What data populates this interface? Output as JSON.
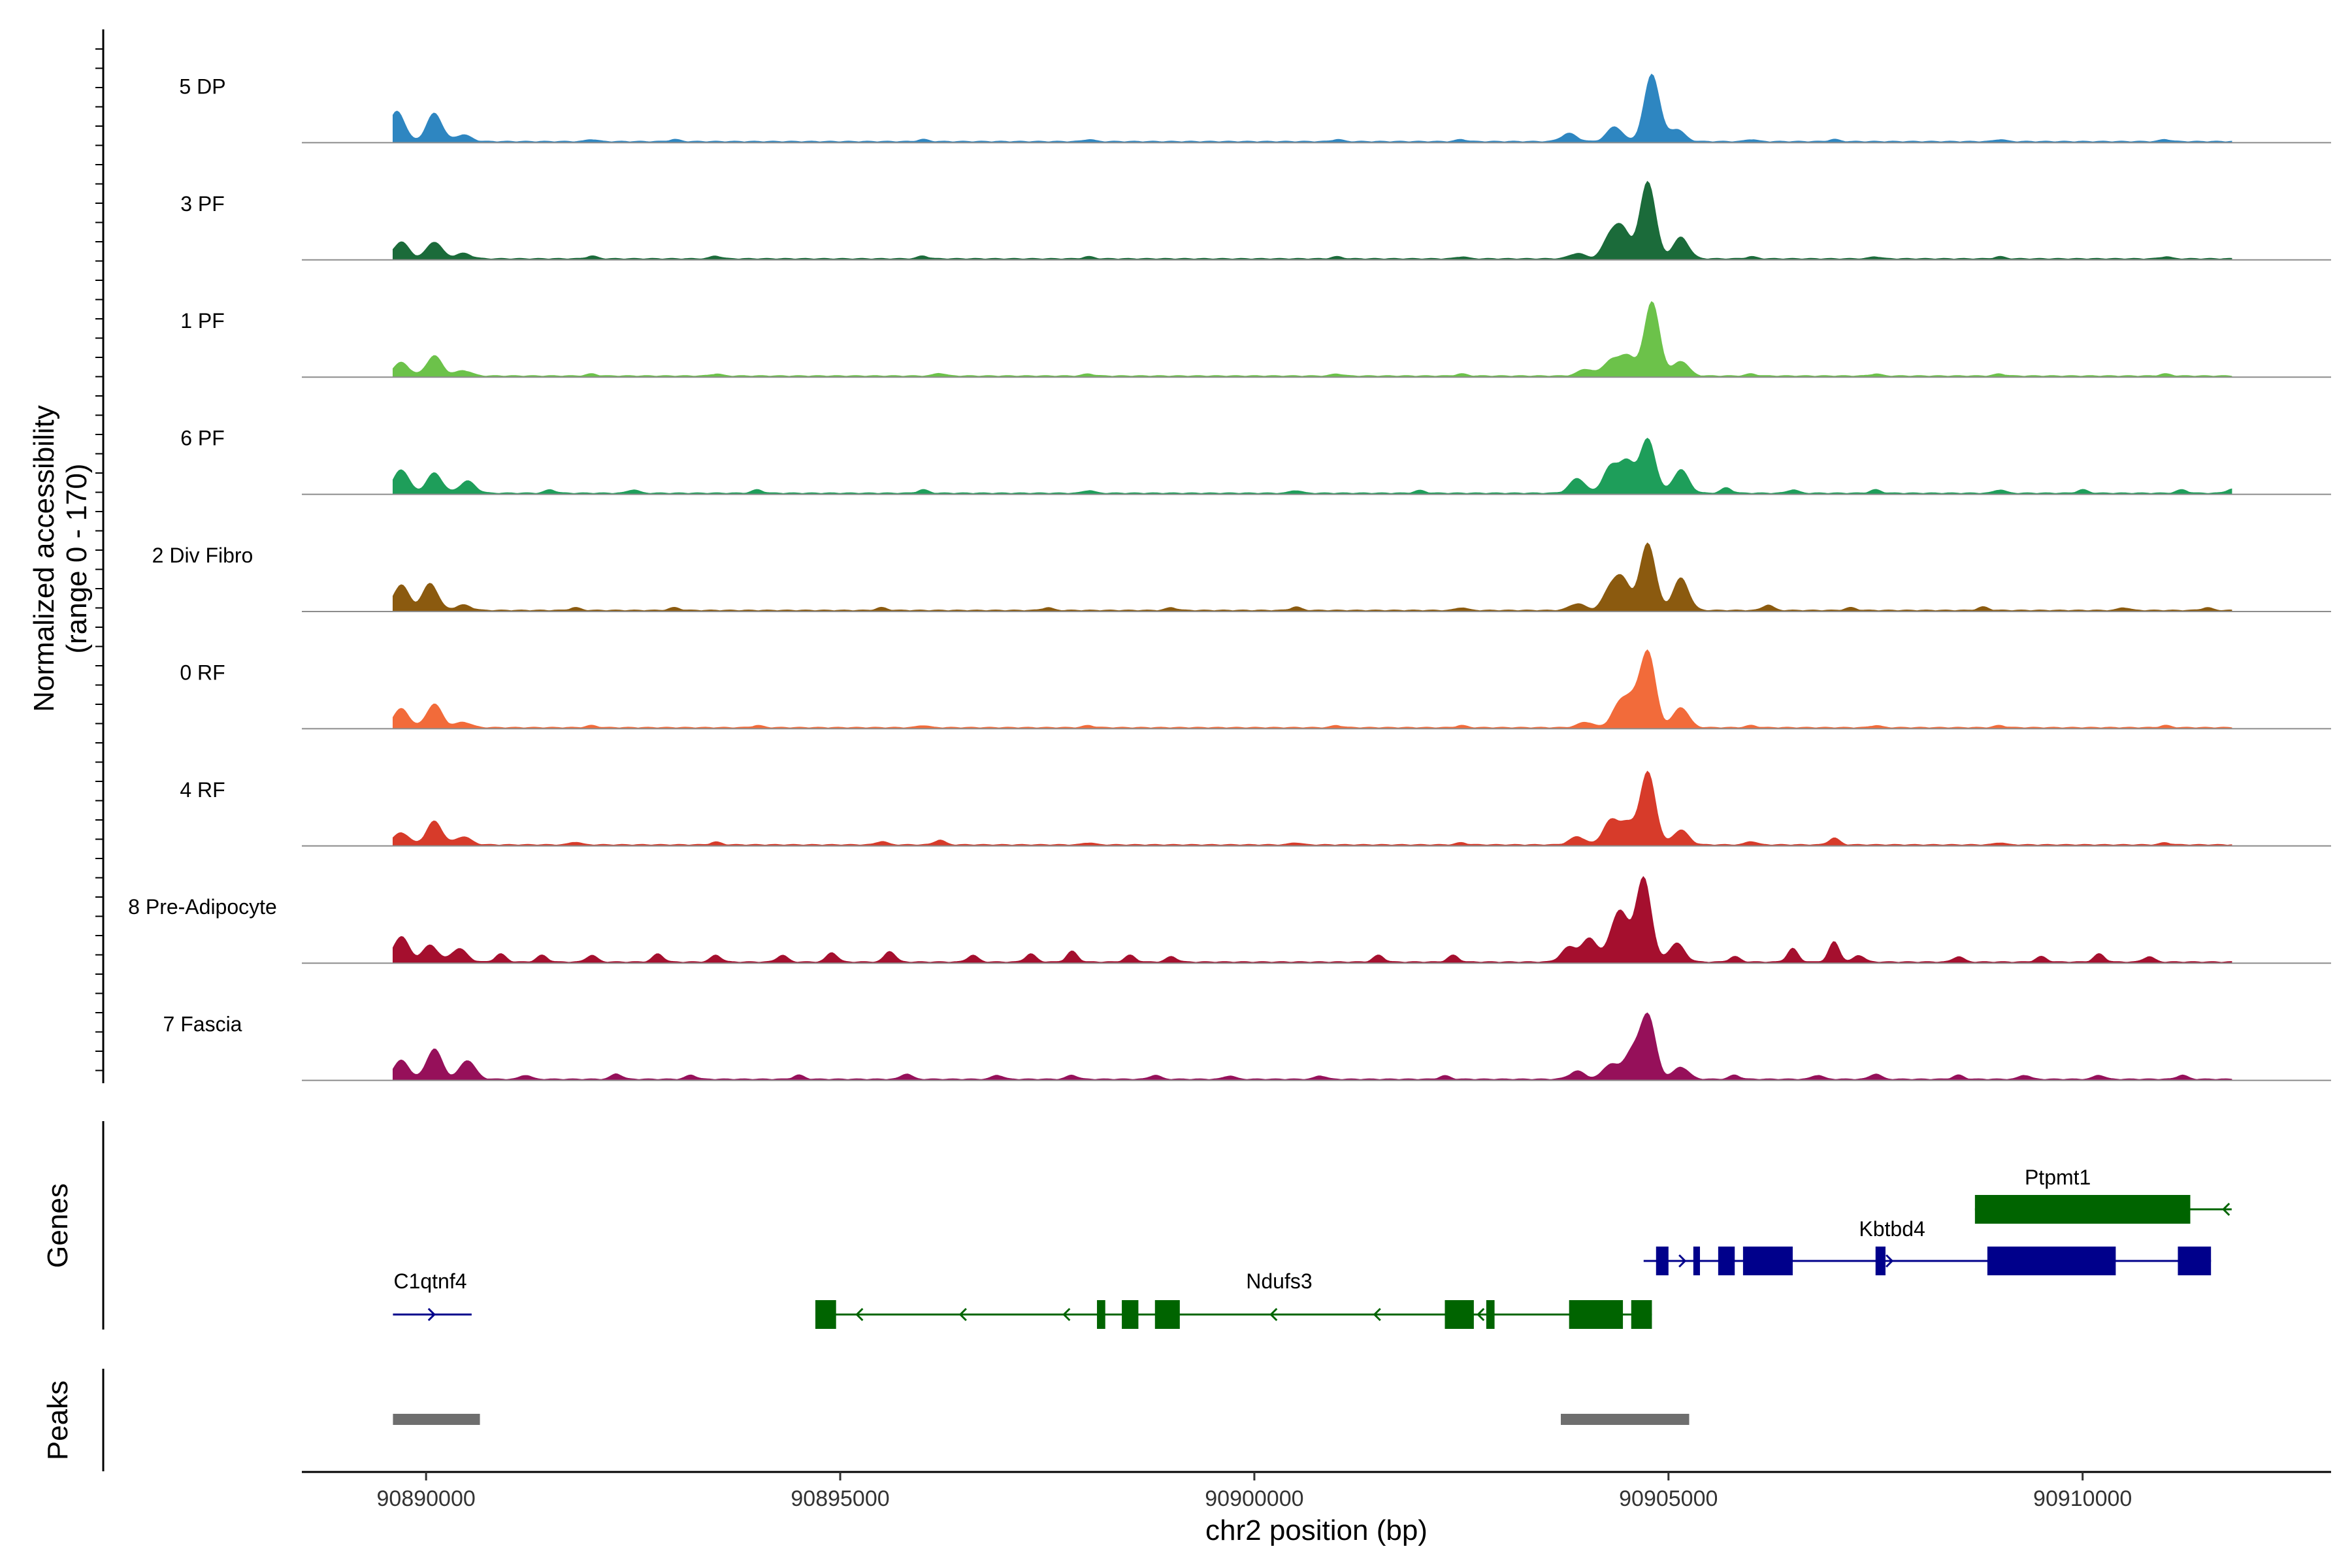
{
  "chart_data": {
    "type": "area",
    "title": "",
    "xlabel": "chr2 position (bp)",
    "ylabel": "Normalized accessibility",
    "ylabel_range": "(range 0 - 170)",
    "xlim": [
      90888500,
      90913000
    ],
    "ylim": [
      0,
      170
    ],
    "x_ticks": [
      90890000,
      90895000,
      90900000,
      90905000,
      90910000
    ],
    "x_tick_labels": [
      "90890000",
      "90895000",
      "90900000",
      "90905000",
      "90910000"
    ],
    "series": [
      {
        "name": "5 DP",
        "color": "#2E86C1",
        "peaks": [
          [
            90889650,
            45
          ],
          [
            90890100,
            42
          ],
          [
            90890450,
            10
          ],
          [
            90903800,
            12
          ],
          [
            90904350,
            22
          ],
          [
            90904800,
            100
          ],
          [
            90905100,
            18
          ]
        ],
        "small_peaks": [
          [
            90892000,
            3
          ],
          [
            90893000,
            3
          ],
          [
            90896000,
            3
          ],
          [
            90898000,
            3
          ],
          [
            90901000,
            3
          ],
          [
            90902500,
            3
          ],
          [
            90906000,
            3
          ],
          [
            90907000,
            3
          ],
          [
            90909000,
            3
          ],
          [
            90911000,
            3
          ]
        ]
      },
      {
        "name": "3 PF",
        "color": "#1B6B3A",
        "peaks": [
          [
            90889700,
            25
          ],
          [
            90890100,
            25
          ],
          [
            90890450,
            8
          ],
          [
            90903900,
            8
          ],
          [
            90904300,
            32
          ],
          [
            90904450,
            40
          ],
          [
            90904750,
            115
          ],
          [
            90905150,
            32
          ]
        ],
        "small_peaks": [
          [
            90892000,
            4
          ],
          [
            90893500,
            4
          ],
          [
            90896000,
            4
          ],
          [
            90898000,
            3
          ],
          [
            90901000,
            3
          ],
          [
            90902500,
            3
          ],
          [
            90906000,
            3
          ],
          [
            90907500,
            3
          ],
          [
            90909000,
            3
          ],
          [
            90911000,
            3
          ]
        ]
      },
      {
        "name": "1 PF",
        "color": "#6CC24A",
        "peaks": [
          [
            90889700,
            20
          ],
          [
            90890100,
            30
          ],
          [
            90890450,
            8
          ],
          [
            90904000,
            10
          ],
          [
            90904300,
            22
          ],
          [
            90904500,
            30
          ],
          [
            90904800,
            110
          ],
          [
            90905150,
            22
          ]
        ],
        "small_peaks": [
          [
            90892000,
            3
          ],
          [
            90893500,
            3
          ],
          [
            90896200,
            4
          ],
          [
            90898000,
            3
          ],
          [
            90901000,
            3
          ],
          [
            90902500,
            3
          ],
          [
            90906000,
            3
          ],
          [
            90907500,
            3
          ],
          [
            90909000,
            3
          ],
          [
            90911000,
            3
          ]
        ]
      },
      {
        "name": "6 PF",
        "color": "#1E9E5A",
        "peaks": [
          [
            90889700,
            35
          ],
          [
            90890100,
            30
          ],
          [
            90890500,
            18
          ],
          [
            90903900,
            22
          ],
          [
            90904300,
            38
          ],
          [
            90904500,
            45
          ],
          [
            90904750,
            80
          ],
          [
            90905150,
            35
          ]
        ],
        "small_peaks": [
          [
            90891500,
            5
          ],
          [
            90892500,
            5
          ],
          [
            90894000,
            5
          ],
          [
            90896000,
            5
          ],
          [
            90898000,
            4
          ],
          [
            90900500,
            4
          ],
          [
            90902000,
            4
          ],
          [
            90905700,
            8
          ],
          [
            90906500,
            5
          ],
          [
            90907500,
            5
          ],
          [
            90909000,
            5
          ],
          [
            90910000,
            5
          ],
          [
            90911200,
            5
          ],
          [
            90911800,
            6
          ]
        ]
      },
      {
        "name": "2 Div Fibro",
        "color": "#8B5A0F",
        "peaks": [
          [
            90889700,
            38
          ],
          [
            90890050,
            40
          ],
          [
            90890450,
            8
          ],
          [
            90903900,
            10
          ],
          [
            90904300,
            30
          ],
          [
            90904450,
            42
          ],
          [
            90904750,
            100
          ],
          [
            90905150,
            48
          ]
        ],
        "small_peaks": [
          [
            90891800,
            4
          ],
          [
            90893000,
            4
          ],
          [
            90895500,
            4
          ],
          [
            90897500,
            4
          ],
          [
            90899000,
            4
          ],
          [
            90900500,
            5
          ],
          [
            90902500,
            4
          ],
          [
            90906200,
            8
          ],
          [
            90907200,
            4
          ],
          [
            90908800,
            5
          ],
          [
            90910500,
            4
          ],
          [
            90911500,
            4
          ]
        ]
      },
      {
        "name": "0 RF",
        "color": "#F26B3A",
        "peaks": [
          [
            90889700,
            28
          ],
          [
            90890100,
            35
          ],
          [
            90890450,
            8
          ],
          [
            90904000,
            8
          ],
          [
            90904400,
            30
          ],
          [
            90904550,
            35
          ],
          [
            90904750,
            112
          ],
          [
            90905150,
            30
          ]
        ],
        "small_peaks": [
          [
            90892000,
            3
          ],
          [
            90894000,
            3
          ],
          [
            90896000,
            3
          ],
          [
            90898000,
            3
          ],
          [
            90901000,
            3
          ],
          [
            90902500,
            3
          ],
          [
            90906000,
            3
          ],
          [
            90907500,
            3
          ],
          [
            90909000,
            3
          ],
          [
            90911000,
            3
          ]
        ]
      },
      {
        "name": "4 RF",
        "color": "#D73B2A",
        "peaks": [
          [
            90889700,
            18
          ],
          [
            90890100,
            35
          ],
          [
            90890450,
            12
          ],
          [
            90903900,
            12
          ],
          [
            90904300,
            35
          ],
          [
            90904500,
            30
          ],
          [
            90904750,
            108
          ],
          [
            90905150,
            22
          ]
        ],
        "small_peaks": [
          [
            90891800,
            4
          ],
          [
            90893500,
            4
          ],
          [
            90895500,
            5
          ],
          [
            90896200,
            7
          ],
          [
            90898000,
            3
          ],
          [
            90900500,
            3
          ],
          [
            90902500,
            3
          ],
          [
            90906000,
            5
          ],
          [
            90907000,
            10
          ],
          [
            90909000,
            3
          ],
          [
            90911000,
            3
          ]
        ]
      },
      {
        "name": "8 Pre-Adipocyte",
        "color": "#A50F2E",
        "peaks": [
          [
            90889700,
            38
          ],
          [
            90890050,
            25
          ],
          [
            90890400,
            20
          ],
          [
            90903800,
            22
          ],
          [
            90904050,
            35
          ],
          [
            90904350,
            38
          ],
          [
            90904450,
            50
          ],
          [
            90904700,
            125
          ],
          [
            90905100,
            28
          ]
        ],
        "small_peaks": [
          [
            90890900,
            12
          ],
          [
            90891400,
            10
          ],
          [
            90892000,
            10
          ],
          [
            90892800,
            12
          ],
          [
            90893500,
            10
          ],
          [
            90894300,
            10
          ],
          [
            90894900,
            14
          ],
          [
            90895600,
            16
          ],
          [
            90896600,
            10
          ],
          [
            90897300,
            12
          ],
          [
            90897800,
            16
          ],
          [
            90898500,
            10
          ],
          [
            90899000,
            8
          ],
          [
            90901500,
            10
          ],
          [
            90902400,
            10
          ],
          [
            90905800,
            8
          ],
          [
            90906500,
            20
          ],
          [
            90907000,
            30
          ],
          [
            90907300,
            10
          ],
          [
            90908500,
            8
          ],
          [
            90909500,
            8
          ],
          [
            90910200,
            12
          ],
          [
            90910800,
            8
          ]
        ]
      },
      {
        "name": "7 Fascia",
        "color": "#96105A",
        "peaks": [
          [
            90889700,
            28
          ],
          [
            90890100,
            45
          ],
          [
            90890500,
            28
          ],
          [
            90903900,
            12
          ],
          [
            90904300,
            22
          ],
          [
            90904550,
            38
          ],
          [
            90904750,
            95
          ],
          [
            90905150,
            18
          ]
        ],
        "small_peaks": [
          [
            90891200,
            6
          ],
          [
            90892300,
            8
          ],
          [
            90893200,
            6
          ],
          [
            90894500,
            6
          ],
          [
            90895800,
            8
          ],
          [
            90896900,
            6
          ],
          [
            90897800,
            6
          ],
          [
            90898800,
            6
          ],
          [
            90899700,
            5
          ],
          [
            90900800,
            5
          ],
          [
            90902300,
            5
          ],
          [
            90905800,
            6
          ],
          [
            90906800,
            6
          ],
          [
            90907500,
            8
          ],
          [
            90908500,
            6
          ],
          [
            90909300,
            6
          ],
          [
            90910200,
            6
          ],
          [
            90911200,
            6
          ]
        ]
      }
    ],
    "gene_track_label": "Genes",
    "genes": [
      {
        "name": "C1qtnf4",
        "strand": "+",
        "color": "#00008B",
        "start": 90889600,
        "end": 90890550,
        "exons": []
      },
      {
        "name": "Ndufs3",
        "strand": "-",
        "color": "#006400",
        "start": 90894700,
        "end": 90904800,
        "exons": [
          [
            90894700,
            90894950
          ],
          [
            90898100,
            90898200
          ],
          [
            90898400,
            90898600
          ],
          [
            90898800,
            90899100
          ],
          [
            90902300,
            90902650
          ],
          [
            90902800,
            90902900
          ],
          [
            90903800,
            90904450
          ],
          [
            90904550,
            90904800
          ]
        ]
      },
      {
        "name": "Kbtbd4",
        "strand": "+",
        "color": "#00008B",
        "start": 90904700,
        "end": 90911550,
        "exons": [
          [
            90904850,
            90905000
          ],
          [
            90905300,
            90905380
          ],
          [
            90905600,
            90905800
          ],
          [
            90905900,
            90906500
          ],
          [
            90907500,
            90907620
          ],
          [
            90908850,
            90910400
          ],
          [
            90911150,
            90911550
          ]
        ]
      },
      {
        "name": "Ptpmt1",
        "strand": "-",
        "color": "#006400",
        "start": 90908700,
        "end": 90911800,
        "exons": [
          [
            90908700,
            90911300
          ]
        ]
      }
    ],
    "peak_track_label": "Peaks",
    "peak_regions": [
      [
        90889600,
        90890650
      ],
      [
        90903700,
        90905250
      ]
    ]
  }
}
